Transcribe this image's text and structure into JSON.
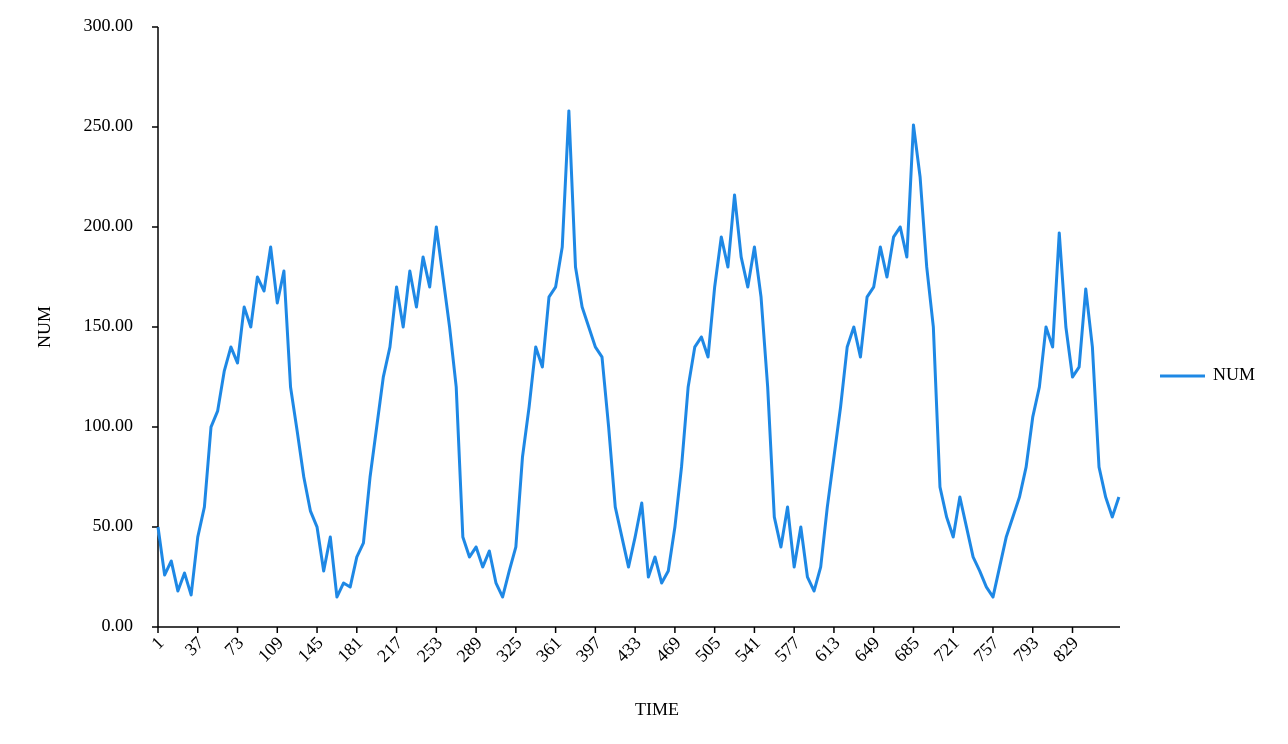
{
  "chart_data": {
    "type": "line",
    "x_label": "TIME",
    "y_label": "NUM",
    "x": [
      1,
      7,
      13,
      19,
      25,
      31,
      37,
      43,
      49,
      55,
      61,
      67,
      73,
      79,
      85,
      91,
      97,
      103,
      109,
      115,
      121,
      127,
      133,
      139,
      145,
      151,
      157,
      163,
      169,
      175,
      181,
      187,
      193,
      199,
      205,
      211,
      217,
      223,
      229,
      235,
      241,
      247,
      253,
      259,
      265,
      271,
      277,
      283,
      289,
      295,
      301,
      307,
      313,
      319,
      325,
      331,
      337,
      343,
      349,
      355,
      361,
      367,
      373,
      379,
      385,
      391,
      397,
      403,
      409,
      415,
      421,
      427,
      433,
      439,
      445,
      451,
      457,
      463,
      469,
      475,
      481,
      487,
      493,
      499,
      505,
      511,
      517,
      523,
      529,
      535,
      541,
      547,
      553,
      559,
      565,
      571,
      577,
      583,
      589,
      595,
      601,
      607,
      613,
      619,
      625,
      631,
      637,
      643,
      649,
      655,
      661,
      667,
      673,
      679,
      685,
      691,
      697,
      703,
      709,
      715,
      721,
      727,
      733,
      739,
      745,
      751,
      757,
      763,
      769,
      775,
      781,
      787,
      793,
      799,
      805,
      811,
      817,
      823,
      829,
      835,
      841,
      847,
      853,
      859,
      865,
      871
    ],
    "series": [
      {
        "name": "NUM",
        "color": "#1e88e5",
        "values": [
          50,
          26,
          33,
          18,
          27,
          16,
          45,
          60,
          100,
          108,
          128,
          140,
          132,
          160,
          150,
          175,
          168,
          190,
          162,
          178,
          120,
          98,
          75,
          58,
          50,
          28,
          45,
          15,
          22,
          20,
          35,
          42,
          75,
          100,
          125,
          140,
          170,
          150,
          178,
          160,
          185,
          170,
          200,
          175,
          150,
          120,
          45,
          35,
          40,
          30,
          38,
          22,
          15,
          28,
          40,
          85,
          110,
          140,
          130,
          165,
          170,
          190,
          258,
          180,
          160,
          150,
          140,
          135,
          100,
          60,
          45,
          30,
          45,
          62,
          25,
          35,
          22,
          28,
          50,
          80,
          120,
          140,
          145,
          135,
          170,
          195,
          180,
          216,
          185,
          170,
          190,
          165,
          120,
          55,
          40,
          60,
          30,
          50,
          25,
          18,
          30,
          60,
          85,
          110,
          140,
          150,
          135,
          165,
          170,
          190,
          175,
          195,
          200,
          185,
          251,
          225,
          180,
          150,
          70,
          55,
          45,
          65,
          50,
          35,
          28,
          20,
          15,
          30,
          45,
          55,
          65,
          80,
          105,
          120,
          150,
          140,
          197,
          150,
          125,
          130,
          169,
          140,
          80,
          65,
          55,
          65
        ]
      }
    ],
    "xlim": [
      1,
      872
    ],
    "xticks": [
      1,
      37,
      73,
      109,
      145,
      181,
      217,
      253,
      289,
      325,
      361,
      397,
      433,
      469,
      505,
      541,
      577,
      613,
      649,
      685,
      721,
      757,
      793,
      829
    ],
    "ylim": [
      0,
      300
    ],
    "yticks": [
      {
        "value": 0,
        "label": "0.00"
      },
      {
        "value": 50,
        "label": "50.00"
      },
      {
        "value": 100,
        "label": "100.00"
      },
      {
        "value": 150,
        "label": "150.00"
      },
      {
        "value": 200,
        "label": "200.00"
      },
      {
        "value": 250,
        "label": "250.00"
      },
      {
        "value": 300,
        "label": "300.00"
      }
    ],
    "legend": "right"
  }
}
